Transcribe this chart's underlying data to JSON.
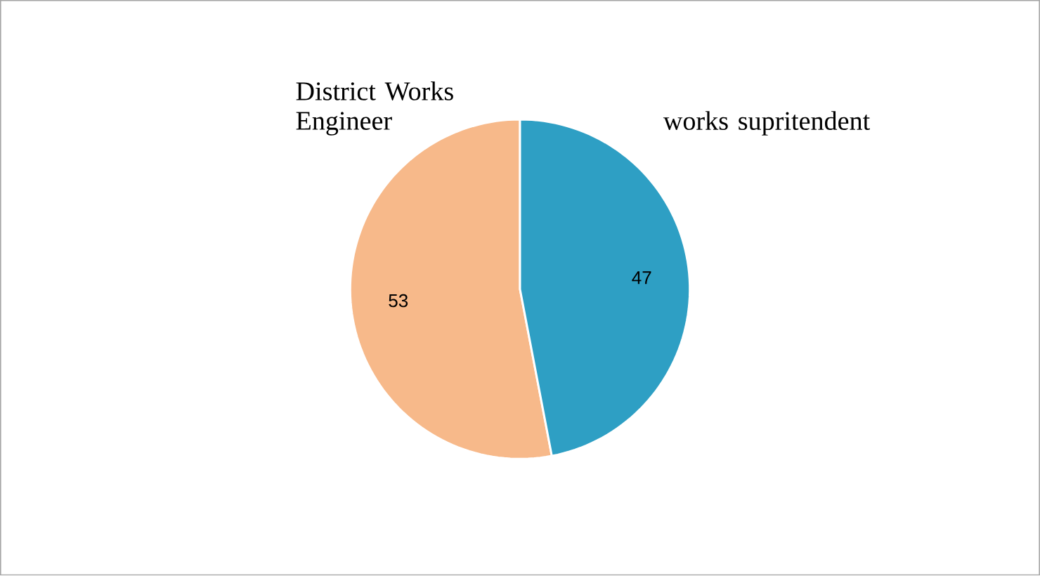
{
  "chart_data": {
    "type": "pie",
    "categories": [
      "District Works Engineer",
      "works supritendent"
    ],
    "values": [
      53,
      47
    ],
    "colors": [
      "#f7b98a",
      "#2e9fc4"
    ],
    "data_labels": true
  }
}
